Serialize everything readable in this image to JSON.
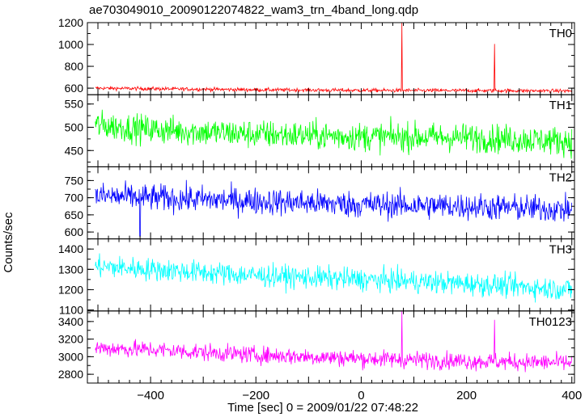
{
  "chart_data": {
    "type": "line",
    "title": "ae703049010_20090122074822_wam3_trn_4band_long.qdp",
    "xlabel": "Time [sec] 0 = 2009/01/22 07:48:22",
    "ylabel": "Counts/sec",
    "xlim": [
      -520,
      405
    ],
    "xticks": [
      -400,
      -200,
      0,
      200,
      400
    ],
    "xtick_labels": [
      "−400",
      "−200",
      "0",
      "200",
      "400"
    ],
    "grid": false,
    "panels": [
      {
        "name": "TH0",
        "color": "#ff0000",
        "ylim": [
          540,
          1200
        ],
        "yticks": [
          600,
          800,
          1000,
          1200
        ],
        "baseline": [
          [
            -505,
            600
          ],
          [
            -400,
            595
          ],
          [
            -200,
            585
          ],
          [
            0,
            580
          ],
          [
            200,
            578
          ],
          [
            400,
            575
          ]
        ],
        "noise": 12,
        "spikes": [
          [
            77,
            1200
          ],
          [
            253,
            1005
          ]
        ]
      },
      {
        "name": "TH1",
        "color": "#00ff00",
        "ylim": [
          415,
          570
        ],
        "yticks": [
          450,
          500,
          550
        ],
        "baseline": [
          [
            -505,
            505
          ],
          [
            -400,
            495
          ],
          [
            -200,
            485
          ],
          [
            0,
            480
          ],
          [
            200,
            478
          ],
          [
            400,
            470
          ]
        ],
        "noise": 22,
        "spikes": []
      },
      {
        "name": "TH2",
        "color": "#0000ff",
        "ylim": [
          580,
          790
        ],
        "yticks": [
          600,
          650,
          700,
          750
        ],
        "baseline": [
          [
            -505,
            705
          ],
          [
            -400,
            700
          ],
          [
            -200,
            690
          ],
          [
            0,
            680
          ],
          [
            200,
            675
          ],
          [
            400,
            665
          ]
        ],
        "noise": 28,
        "spikes": [
          [
            -420,
            588
          ]
        ]
      },
      {
        "name": "TH3",
        "color": "#00ffff",
        "ylim": [
          1095,
          1450
        ],
        "yticks": [
          1100,
          1200,
          1300,
          1400
        ],
        "baseline": [
          [
            -505,
            1315
          ],
          [
            -400,
            1300
          ],
          [
            -200,
            1270
          ],
          [
            0,
            1250
          ],
          [
            200,
            1230
          ],
          [
            400,
            1200
          ]
        ],
        "noise": 40,
        "spikes": []
      },
      {
        "name": "TH0123",
        "color": "#ff00ff",
        "ylim": [
          2700,
          3520
        ],
        "yticks": [
          2800,
          3000,
          3200,
          3400
        ],
        "baseline": [
          [
            -505,
            3100
          ],
          [
            -400,
            3080
          ],
          [
            -200,
            3020
          ],
          [
            0,
            2980
          ],
          [
            200,
            2950
          ],
          [
            400,
            2930
          ]
        ],
        "noise": 70,
        "spikes": [
          [
            77,
            3520
          ],
          [
            253,
            3420
          ]
        ]
      }
    ]
  }
}
